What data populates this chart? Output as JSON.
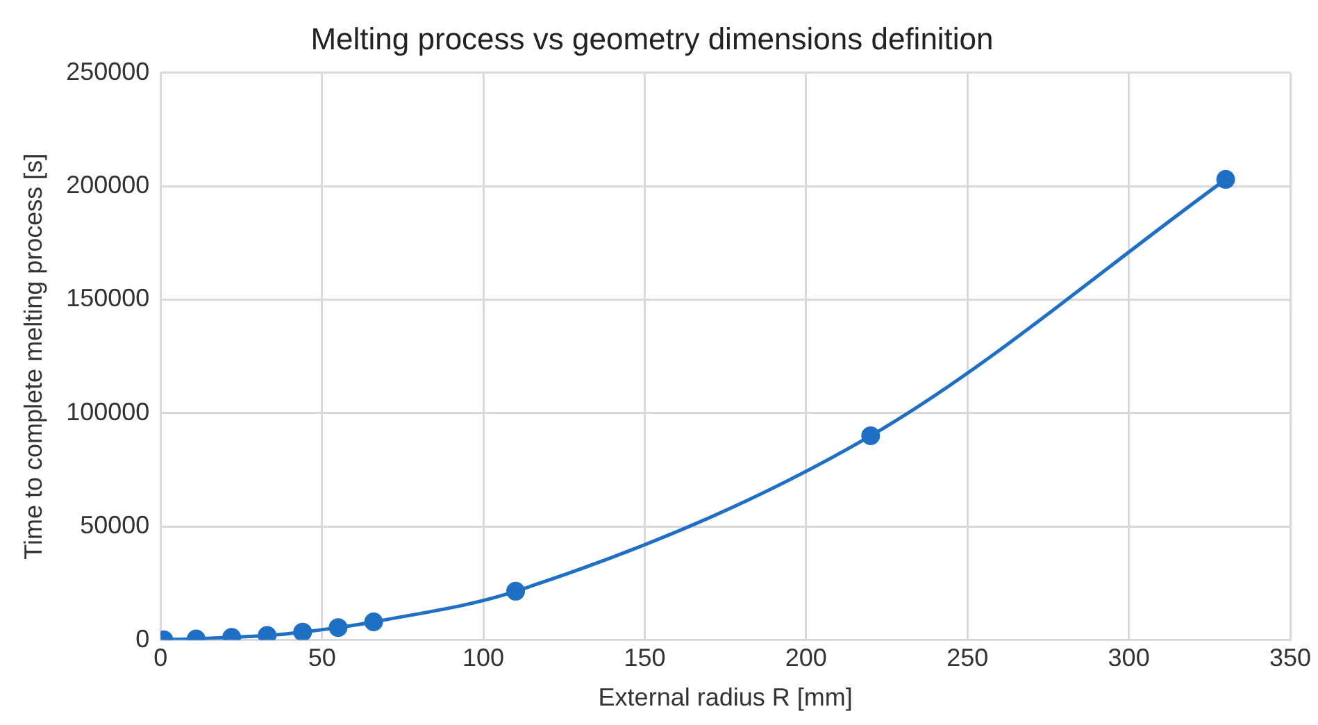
{
  "chart_data": {
    "type": "line",
    "title": "Melting process vs geometry dimensions definition",
    "xlabel": "External radius R [mm]",
    "ylabel": "Time to complete melting process [s]",
    "x": [
      1,
      11,
      22,
      33,
      44,
      55,
      66,
      110,
      220,
      330
    ],
    "series": [
      {
        "color": "#1f6fc5",
        "values": [
          100,
          500,
          1200,
          2000,
          3500,
          5500,
          8000,
          21500,
          90000,
          203000
        ]
      }
    ],
    "xlim": [
      0,
      350
    ],
    "xticks": [
      0,
      50,
      100,
      150,
      200,
      250,
      300,
      350
    ],
    "ylim": [
      0,
      250000
    ],
    "yticks": [
      0,
      50000,
      100000,
      150000,
      200000,
      250000
    ],
    "grid": true,
    "legend": false,
    "marker": "circle",
    "line_style": "solid"
  }
}
